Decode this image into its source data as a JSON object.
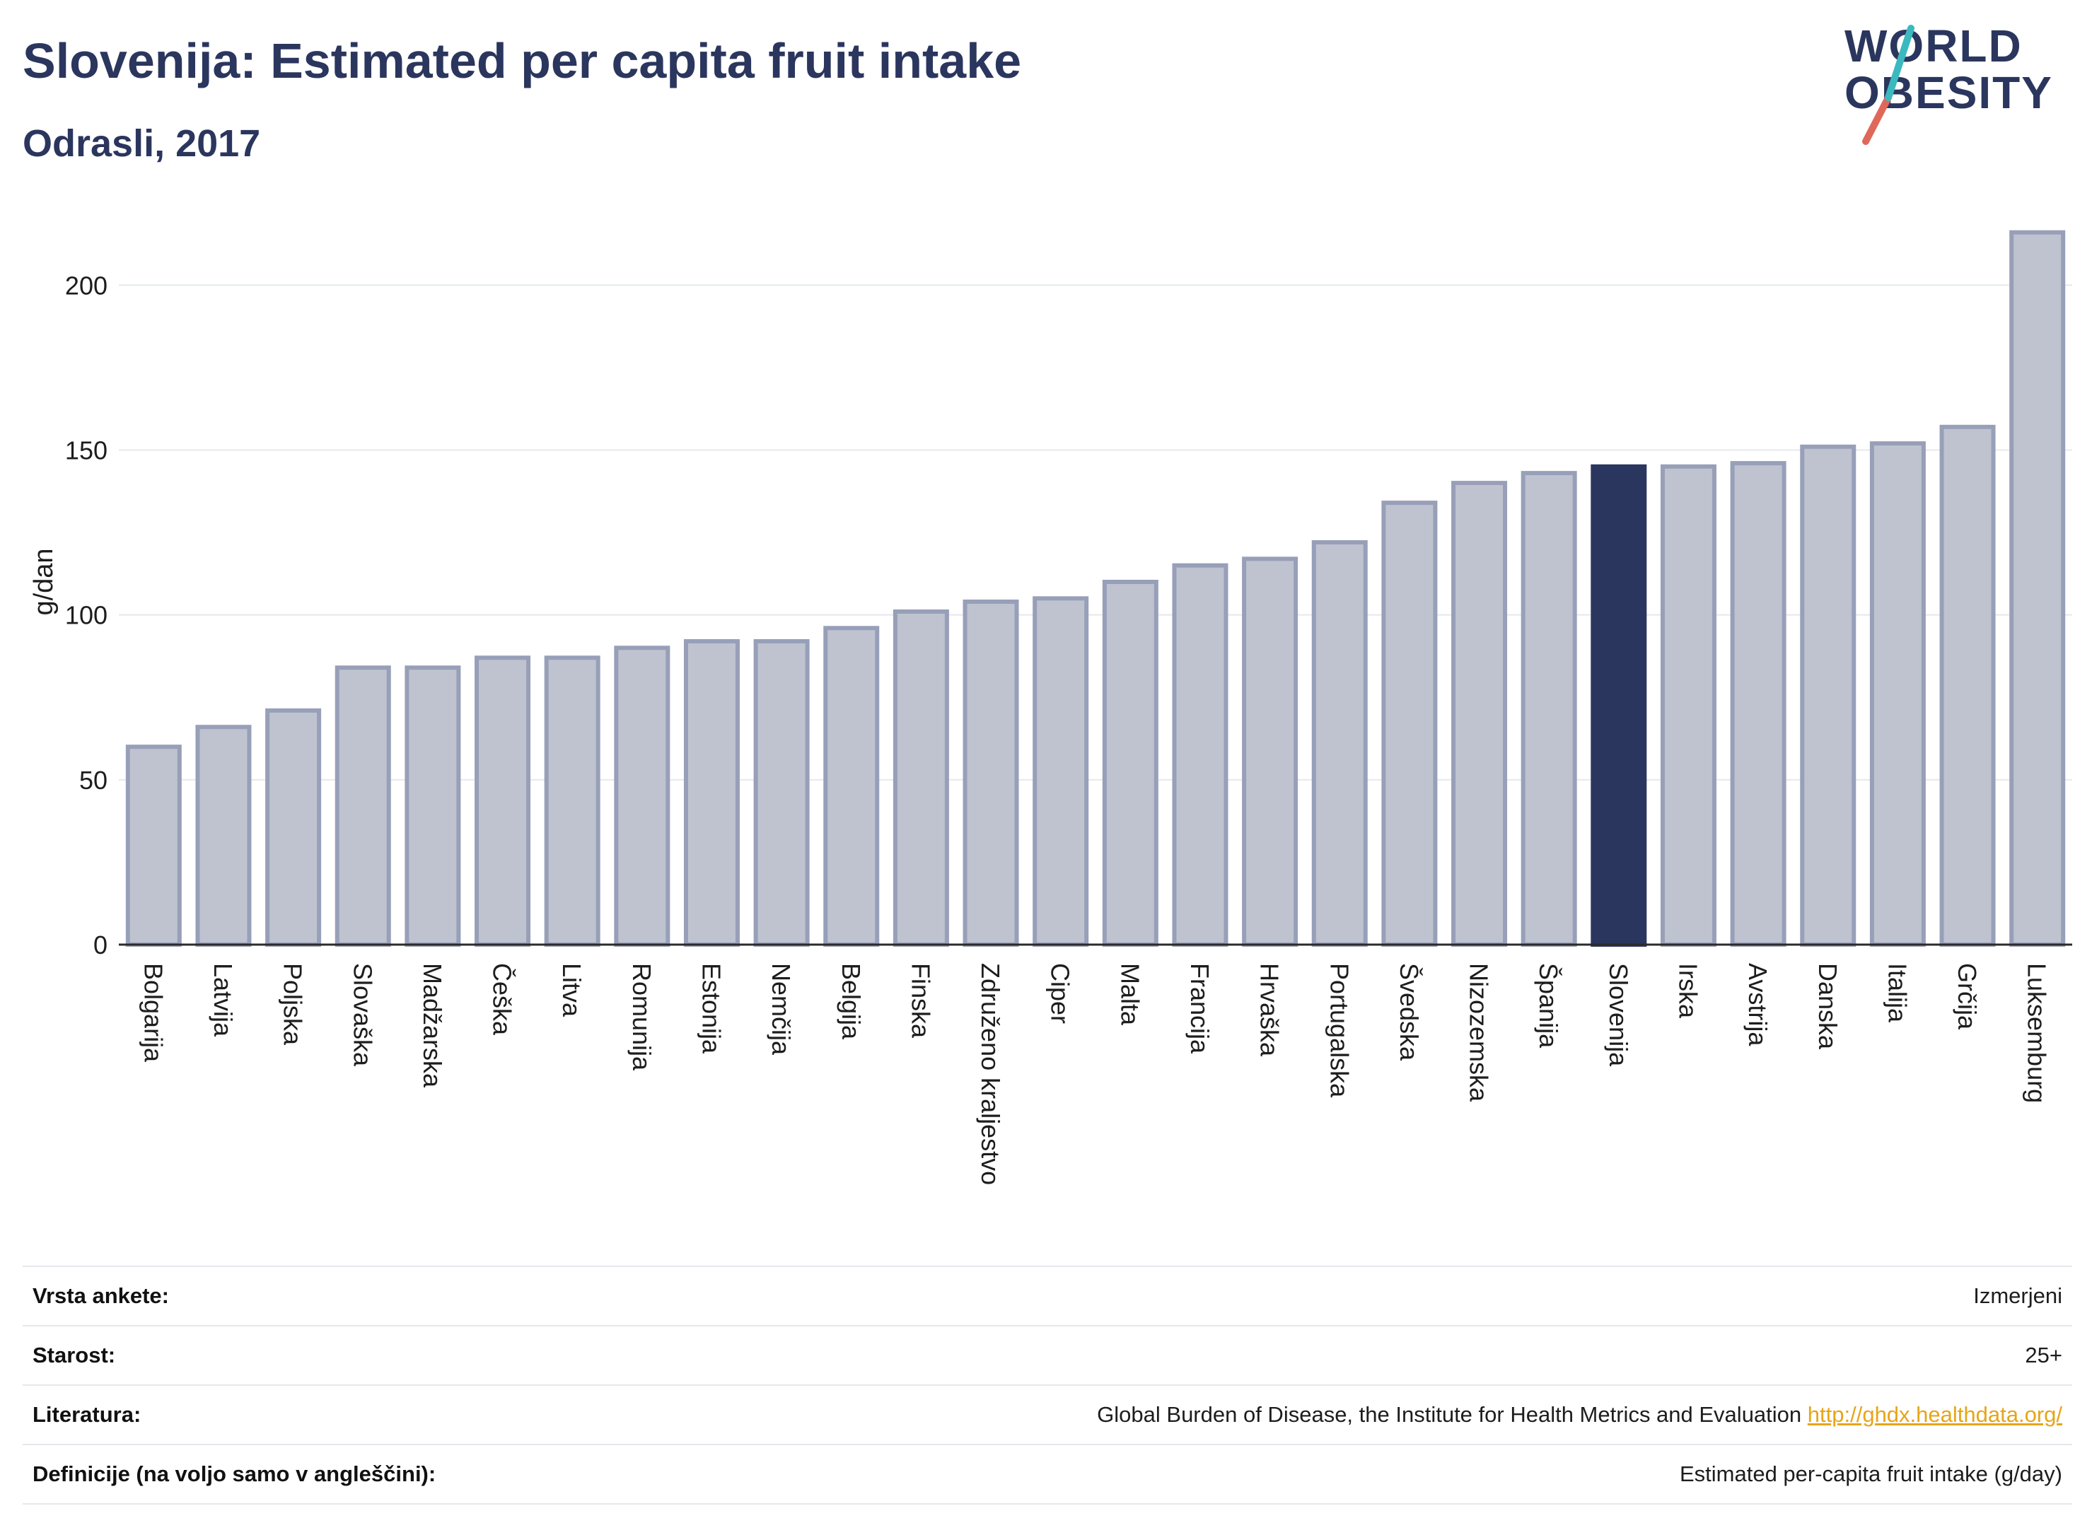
{
  "header": {
    "title": "Slovenija: Estimated per capita fruit intake",
    "subtitle": "Odrasli, 2017"
  },
  "logo": {
    "line1": "WORLD",
    "line2": "OBESITY",
    "colors": {
      "text": "#2b365e",
      "slash_red": "#e0685a",
      "slash_teal": "#3bb9bf"
    }
  },
  "chart_data": {
    "type": "bar",
    "ylabel": "g/dan",
    "xlabel": "",
    "ylim": [
      0,
      220
    ],
    "yticks": [
      0,
      50,
      100,
      150,
      200
    ],
    "grid": true,
    "highlight": "Slovenija",
    "colors": {
      "bar": "#bfc3d0",
      "bar_border": "#989fb8",
      "highlight": "#2b365e",
      "grid": "#e6e8ec"
    },
    "categories": [
      "Bolgarija",
      "Latvija",
      "Poljska",
      "Slovaška",
      "Madžarska",
      "Češka",
      "Litva",
      "Romunija",
      "Estonija",
      "Nemčija",
      "Belgija",
      "Finska",
      "Združeno kraljestvo",
      "Ciper",
      "Malta",
      "Francija",
      "Hrvaška",
      "Portugalska",
      "Švedska",
      "Nizozemska",
      "Španija",
      "Slovenija",
      "Irska",
      "Avstrija",
      "Danska",
      "Italija",
      "Grčija",
      "Luksemburg"
    ],
    "values": [
      60,
      66,
      71,
      84,
      84,
      87,
      87,
      90,
      92,
      92,
      96,
      101,
      104,
      105,
      110,
      115,
      117,
      122,
      134,
      140,
      143,
      145,
      145,
      146,
      151,
      152,
      157,
      216
    ]
  },
  "info_table": [
    {
      "label": "Vrsta ankete:",
      "value": "Izmerjeni"
    },
    {
      "label": "Starost:",
      "value": "25+"
    },
    {
      "label": "Literatura:",
      "value": "Global Burden of Disease, the Institute for Health Metrics and Evaluation",
      "link": "http://ghdx.healthdata.org/"
    },
    {
      "label": "Definicije (na voljo samo v angleščini):",
      "value": "Estimated per-capita fruit intake (g/day)"
    }
  ]
}
